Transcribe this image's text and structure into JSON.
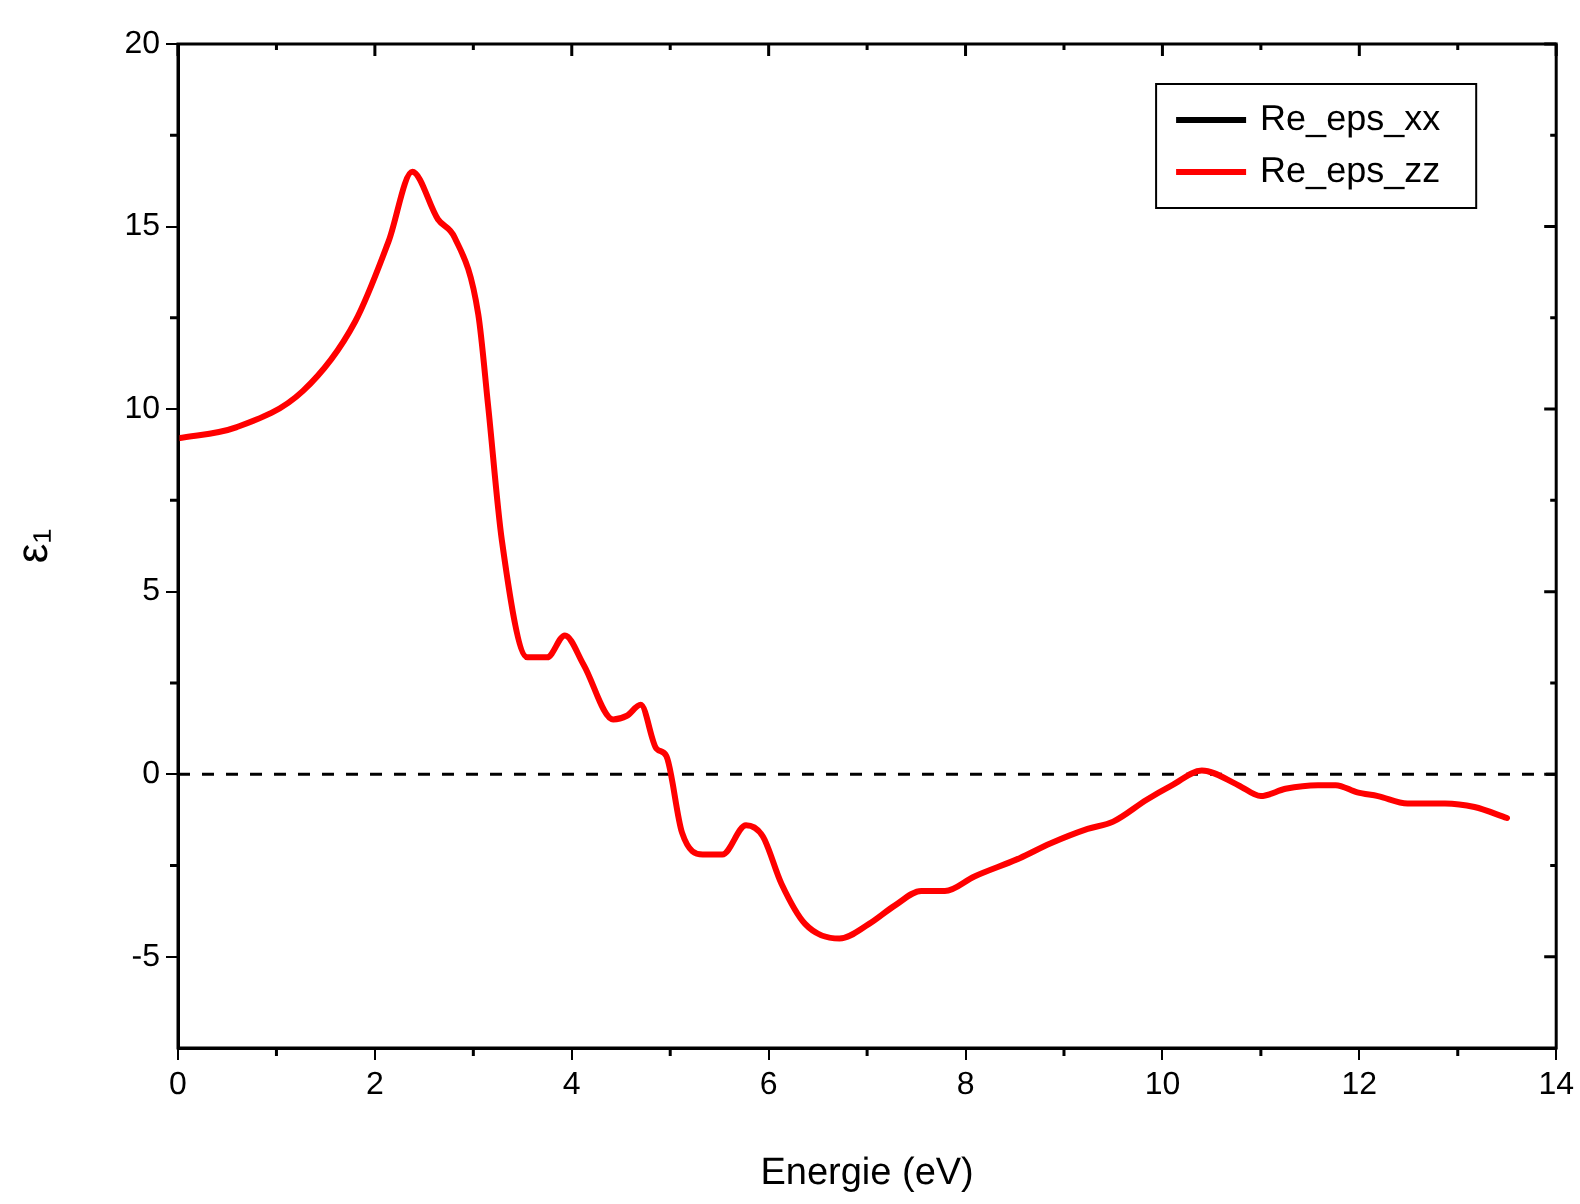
{
  "chart_data": {
    "type": "line",
    "xlabel": "Energie (eV)",
    "ylabel": "ε₁",
    "xlim": [
      0,
      14
    ],
    "xticks": [
      0,
      2,
      4,
      6,
      8,
      10,
      12,
      14
    ],
    "ylim": [
      -7.5,
      20
    ],
    "yticks": [
      -5,
      0,
      5,
      10,
      15,
      20
    ],
    "grid": false,
    "legend": "top right",
    "marker": "none",
    "line_style": "solid",
    "ref_lines": [
      {
        "axis": "y",
        "value": 0,
        "color": "#000000",
        "line_style": "dashed"
      }
    ],
    "series": [
      {
        "name": "Re_eps_xx",
        "color": "#000000"
      },
      {
        "name": "Re_eps_zz",
        "color": "#ff0000",
        "x": [
          0,
          0.59,
          1.27,
          1.8,
          2.14,
          2.38,
          2.64,
          2.81,
          3.05,
          3.15,
          3.29,
          3.55,
          3.75,
          3.93,
          4.12,
          4.42,
          4.56,
          4.7,
          4.86,
          4.96,
          5.12,
          5.33,
          5.53,
          5.77,
          5.94,
          6.13,
          6.37,
          6.72,
          7.02,
          7.28,
          7.55,
          7.79,
          8.09,
          8.55,
          8.86,
          9.24,
          9.5,
          9.84,
          10.1,
          10.4,
          10.77,
          11.0,
          11.25,
          11.58,
          11.76,
          11.98,
          12.19,
          12.49,
          12.87,
          13.17,
          13.5
        ],
        "values": [
          9.2,
          9.5,
          10.5,
          12.4,
          14.6,
          16.5,
          15.2,
          14.7,
          12.6,
          10.1,
          6.4,
          3.2,
          3.2,
          3.8,
          3.0,
          1.5,
          1.6,
          1.9,
          0.7,
          0.5,
          -1.6,
          -2.2,
          -2.2,
          -1.4,
          -1.7,
          -3.0,
          -4.1,
          -4.5,
          -4.1,
          -3.6,
          -3.2,
          -3.2,
          -2.8,
          -2.3,
          -1.9,
          -1.5,
          -1.3,
          -0.7,
          -0.3,
          0.1,
          -0.3,
          -0.6,
          -0.4,
          -0.3,
          -0.3,
          -0.5,
          -0.6,
          -0.8,
          -0.8,
          -0.9,
          -1.2
        ]
      }
    ]
  }
}
